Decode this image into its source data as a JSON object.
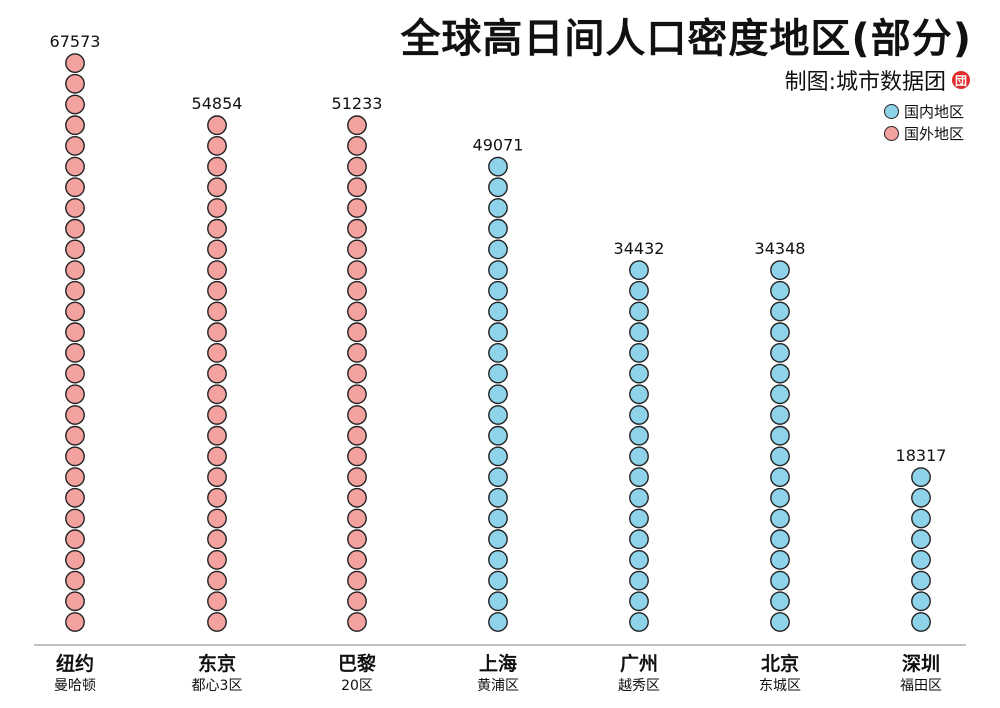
{
  "header": {
    "title": "全球高日间人口密度地区(部分)",
    "credit": "制图:城市数据团",
    "logo_glyph": "団"
  },
  "legend": [
    {
      "label": "国内地区",
      "color": "#8fd3ea"
    },
    {
      "label": "国外地区",
      "color": "#f4a29f"
    }
  ],
  "chart_data": {
    "type": "bar",
    "style": "stacked-circle-columns",
    "categories": [
      "纽约",
      "东京",
      "巴黎",
      "上海",
      "广州",
      "北京",
      "深圳"
    ],
    "districts": [
      "曼哈顿",
      "都心3区",
      "20区",
      "黄浦区",
      "越秀区",
      "东城区",
      "福田区"
    ],
    "values": [
      67573,
      54854,
      51233,
      49071,
      34432,
      34348,
      18317
    ],
    "circle_counts": [
      28,
      25,
      25,
      23,
      18,
      18,
      8
    ],
    "group": [
      "国外地区",
      "国外地区",
      "国外地区",
      "国内地区",
      "国内地区",
      "国内地区",
      "国内地区"
    ],
    "colors": {
      "国内地区": "#8fd3ea",
      "国外地区": "#f4a29f"
    },
    "stroke_color": "#222222",
    "axis_color": "#999999"
  }
}
